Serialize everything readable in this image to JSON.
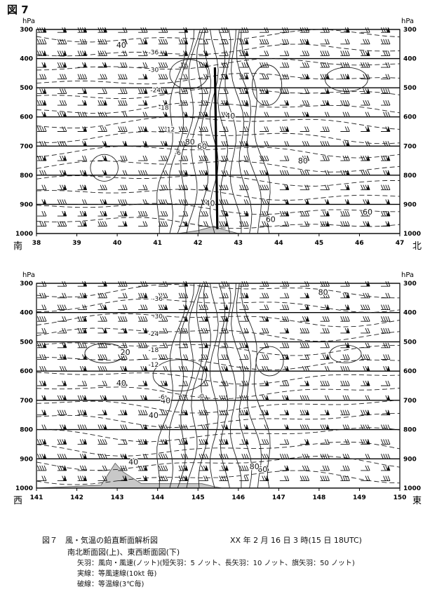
{
  "figure": {
    "label": "図 7",
    "caption_title": "図７　風・気温の鉛直断面解析図",
    "caption_date": "XX 年 2 月 16 日 3 時(15 日 18UTC)",
    "caption_subtitle": "南北断面図(上)、東西断面図(下)",
    "legend_lines": [
      "矢羽：風向・風速(ノット)(短矢羽：5 ノット、長矢羽：10 ノット、旗矢羽：50 ノット)",
      "実線：等風速線(10kt 毎)",
      "破線：等温線(3℃毎)"
    ]
  },
  "chart_data": [
    {
      "type": "line",
      "section": "north-south",
      "y_unit": "hPa",
      "yticks": [
        "300",
        "400",
        "500",
        "600",
        "700",
        "800",
        "900",
        "1000"
      ],
      "ylim": [
        1000,
        300
      ],
      "xticks": [
        "38",
        "39",
        "40",
        "41",
        "42",
        "43",
        "44",
        "45",
        "46",
        "47"
      ],
      "xlim": [
        38,
        47
      ],
      "left_end_label": "南",
      "right_end_label": "北",
      "isotach_labels": [
        {
          "text": "40",
          "x": 40.1,
          "y": 362
        },
        {
          "text": "40",
          "x": 42.8,
          "y": 605
        },
        {
          "text": "80",
          "x": 41.8,
          "y": 695
        },
        {
          "text": "60",
          "x": 42.1,
          "y": 710
        },
        {
          "text": "80",
          "x": 44.6,
          "y": 760
        },
        {
          "text": "40",
          "x": 42.3,
          "y": 905
        },
        {
          "text": "60",
          "x": 43.8,
          "y": 960
        },
        {
          "text": "60",
          "x": 46.2,
          "y": 935
        }
      ],
      "isotherm_labels": [
        {
          "text": "-36",
          "x": 40.9,
          "y": 385
        },
        {
          "text": "-30",
          "x": 40.9,
          "y": 445
        },
        {
          "text": "-24",
          "x": 40.95,
          "y": 515
        },
        {
          "text": "-18",
          "x": 41.15,
          "y": 575
        },
        {
          "text": "-12",
          "x": 41.3,
          "y": 650
        },
        {
          "text": "-6",
          "x": 41.5,
          "y": 730
        }
      ],
      "front_line": {
        "x_top": 42.42,
        "x_bottom": 42.48,
        "p_top": 430,
        "p_bottom": 985
      },
      "terrain": [
        [
          38,
          1000
        ],
        [
          41.5,
          1000
        ],
        [
          42.0,
          990
        ],
        [
          42.4,
          975
        ],
        [
          42.6,
          985
        ],
        [
          43.0,
          1000
        ],
        [
          47,
          1000
        ]
      ]
    },
    {
      "type": "line",
      "section": "east-west",
      "y_unit": "hPa",
      "yticks": [
        "300",
        "400",
        "500",
        "600",
        "700",
        "800",
        "900",
        "1000"
      ],
      "ylim": [
        1000,
        300
      ],
      "xticks": [
        "141",
        "142",
        "143",
        "144",
        "145",
        "146",
        "147",
        "148",
        "149",
        "150"
      ],
      "xlim": [
        141,
        150
      ],
      "left_end_label": "西",
      "right_end_label": "東",
      "isotach_labels": [
        {
          "text": "80",
          "x": 148.1,
          "y": 340
        },
        {
          "text": "20",
          "x": 143.2,
          "y": 545
        },
        {
          "text": "40",
          "x": 143.1,
          "y": 650
        },
        {
          "text": "40",
          "x": 144.2,
          "y": 710
        },
        {
          "text": "40",
          "x": 143.9,
          "y": 760
        },
        {
          "text": "40",
          "x": 143.4,
          "y": 920
        },
        {
          "text": "60",
          "x": 146.6,
          "y": 945
        },
        {
          "text": "80",
          "x": 146.4,
          "y": 935
        }
      ],
      "isotherm_labels": [
        {
          "text": "-36",
          "x": 144.0,
          "y": 360
        },
        {
          "text": "-30",
          "x": 144.0,
          "y": 420
        },
        {
          "text": "-24",
          "x": 143.9,
          "y": 480
        },
        {
          "text": "-18",
          "x": 143.9,
          "y": 535
        },
        {
          "text": "-12",
          "x": 143.9,
          "y": 585
        },
        {
          "text": "-6",
          "x": 144.1,
          "y": 695
        },
        {
          "text": "0",
          "x": 145.1,
          "y": 693
        }
      ],
      "front_line": null,
      "terrain": [
        [
          141,
          1000
        ],
        [
          142.6,
          990
        ],
        [
          142.95,
          915
        ],
        [
          143.15,
          945
        ],
        [
          143.6,
          985
        ],
        [
          145.1,
          985
        ],
        [
          145.4,
          995
        ],
        [
          145.6,
          1000
        ],
        [
          150,
          1000
        ]
      ]
    }
  ]
}
